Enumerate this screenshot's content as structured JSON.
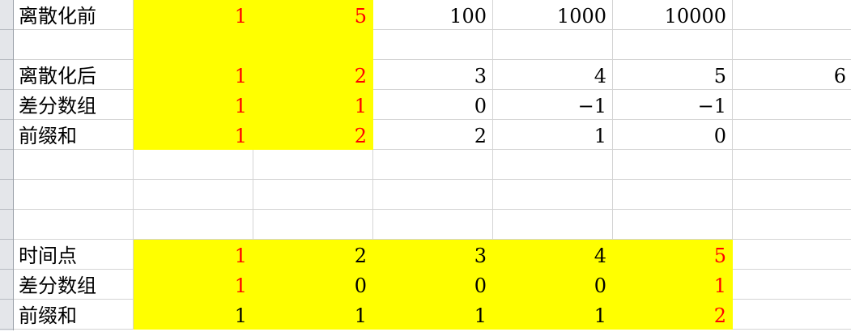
{
  "colors": {
    "highlight": "#ffff00",
    "emphasis": "#ff0000"
  },
  "rows": [
    {
      "cells": [
        {
          "v": "离散化前"
        },
        {
          "v": "1",
          "y": 1,
          "r": 1
        },
        {
          "v": "5",
          "y": 1,
          "r": 1
        },
        {
          "v": "100"
        },
        {
          "v": "1000"
        },
        {
          "v": "10000"
        },
        {
          "v": ""
        }
      ]
    },
    {
      "cells": [
        {
          "v": ""
        },
        {
          "v": "",
          "y": 1
        },
        {
          "v": "",
          "y": 1
        },
        {
          "v": ""
        },
        {
          "v": ""
        },
        {
          "v": ""
        },
        {
          "v": ""
        }
      ]
    },
    {
      "cells": [
        {
          "v": "离散化后"
        },
        {
          "v": "1",
          "y": 1,
          "r": 1
        },
        {
          "v": "2",
          "y": 1,
          "r": 1
        },
        {
          "v": "3"
        },
        {
          "v": "4"
        },
        {
          "v": "5"
        },
        {
          "v": "6"
        }
      ]
    },
    {
      "cells": [
        {
          "v": "差分数组"
        },
        {
          "v": "1",
          "y": 1,
          "r": 1
        },
        {
          "v": "1",
          "y": 1,
          "r": 1
        },
        {
          "v": "0"
        },
        {
          "v": "−1"
        },
        {
          "v": "−1"
        },
        {
          "v": ""
        }
      ]
    },
    {
      "cells": [
        {
          "v": "前缀和"
        },
        {
          "v": "1",
          "y": 1,
          "r": 1
        },
        {
          "v": "2",
          "y": 1,
          "r": 1
        },
        {
          "v": "2"
        },
        {
          "v": "1"
        },
        {
          "v": "0"
        },
        {
          "v": ""
        }
      ]
    },
    {
      "cells": [
        {
          "v": ""
        },
        {
          "v": ""
        },
        {
          "v": ""
        },
        {
          "v": ""
        },
        {
          "v": ""
        },
        {
          "v": ""
        },
        {
          "v": ""
        }
      ]
    },
    {
      "cells": [
        {
          "v": ""
        },
        {
          "v": ""
        },
        {
          "v": ""
        },
        {
          "v": ""
        },
        {
          "v": ""
        },
        {
          "v": ""
        },
        {
          "v": ""
        }
      ]
    },
    {
      "cells": [
        {
          "v": ""
        },
        {
          "v": ""
        },
        {
          "v": ""
        },
        {
          "v": ""
        },
        {
          "v": ""
        },
        {
          "v": ""
        },
        {
          "v": ""
        }
      ]
    },
    {
      "cells": [
        {
          "v": "时间点"
        },
        {
          "v": "1",
          "y": 1,
          "r": 1
        },
        {
          "v": "2",
          "y": 1
        },
        {
          "v": "3",
          "y": 1
        },
        {
          "v": "4",
          "y": 1
        },
        {
          "v": "5",
          "y": 1,
          "r": 1
        },
        {
          "v": ""
        }
      ]
    },
    {
      "cells": [
        {
          "v": "差分数组"
        },
        {
          "v": "1",
          "y": 1,
          "r": 1
        },
        {
          "v": "0",
          "y": 1
        },
        {
          "v": "0",
          "y": 1
        },
        {
          "v": "0",
          "y": 1
        },
        {
          "v": "1",
          "y": 1,
          "r": 1
        },
        {
          "v": ""
        }
      ]
    },
    {
      "cells": [
        {
          "v": "前缀和"
        },
        {
          "v": "1",
          "y": 1
        },
        {
          "v": "1",
          "y": 1
        },
        {
          "v": "1",
          "y": 1
        },
        {
          "v": "1",
          "y": 1
        },
        {
          "v": "2",
          "y": 1,
          "r": 1
        },
        {
          "v": ""
        }
      ]
    }
  ]
}
